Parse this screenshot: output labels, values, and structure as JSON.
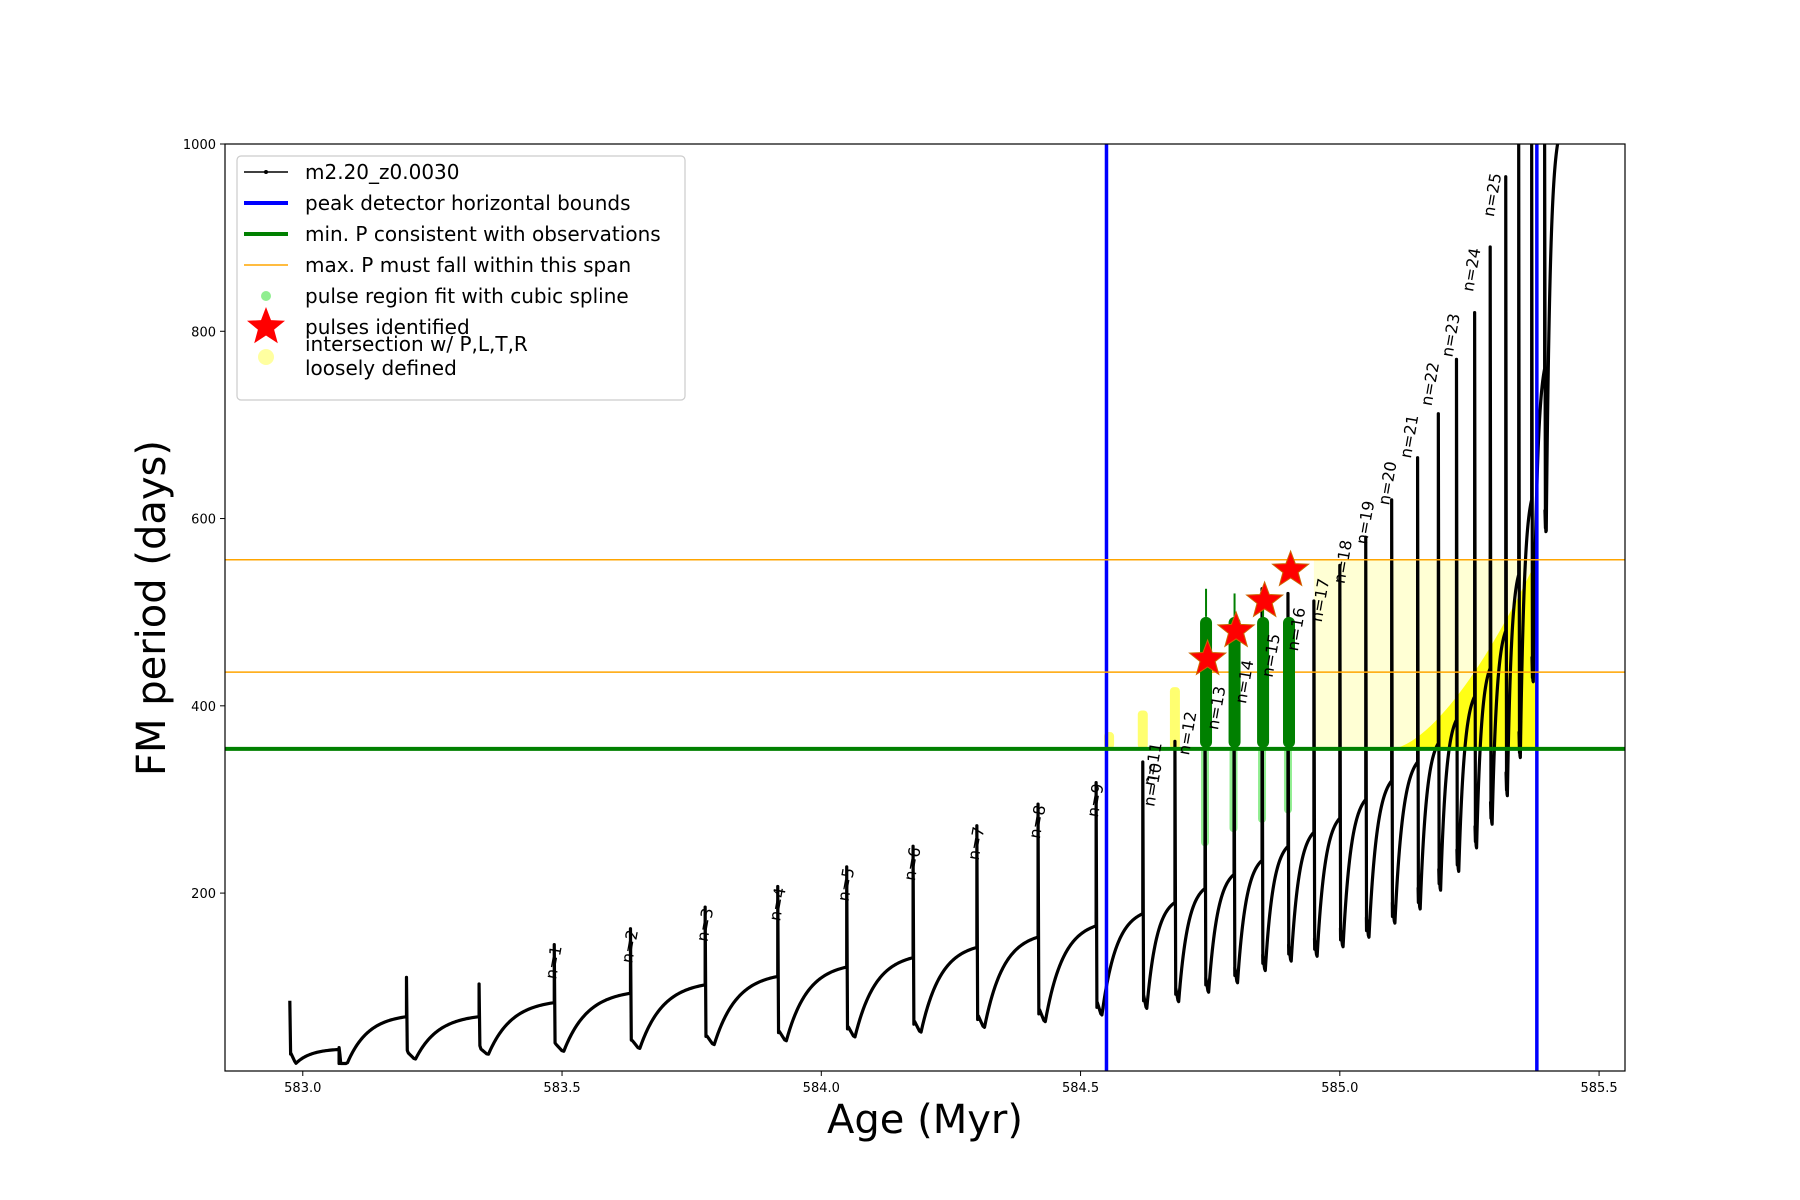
{
  "chart_data": {
    "type": "line",
    "xlabel": "Age (Myr)",
    "ylabel": "FM period (days)",
    "xlim": [
      582.85,
      585.55
    ],
    "ylim": [
      10,
      1000
    ],
    "x_ticks": [
      "583.0",
      "583.5",
      "584.0",
      "584.5",
      "585.0",
      "585.5"
    ],
    "x_tick_values": [
      583.0,
      583.5,
      584.0,
      584.5,
      585.0,
      585.5
    ],
    "y_ticks": [
      "200",
      "400",
      "600",
      "800",
      "1000"
    ],
    "y_tick_values": [
      200,
      400,
      600,
      800,
      1000
    ],
    "grid": false,
    "legend_position": "upper-left",
    "legend": [
      {
        "label": "m2.20_z0.0030",
        "marker": "line-dot",
        "color": "#000000"
      },
      {
        "label": "peak detector horizontal bounds",
        "marker": "line",
        "color": "#0000ff"
      },
      {
        "label": "min. P consistent with observations",
        "marker": "line",
        "color": "#008000"
      },
      {
        "label": "max. P must fall within this span",
        "marker": "line",
        "color": "#ffa500"
      },
      {
        "label": "pulse region fit with cubic spline",
        "marker": "dot",
        "color": "#90ee90"
      },
      {
        "label": "pulses identified",
        "marker": "star",
        "color": "#ff0000"
      },
      {
        "label": "intersection w/ P,L,T,R",
        "label2": "loosely defined",
        "marker": "dot",
        "color": "#ffffa0"
      }
    ],
    "peak_detector_bounds_x": [
      584.55,
      585.38
    ],
    "min_period": 354,
    "max_period_span": [
      436,
      556
    ],
    "series": [
      {
        "name": "m2.20_z0.0030",
        "color": "#000000",
        "cycles": [
          {
            "t_start": 582.975,
            "t_end": 583.07,
            "p_start": 85,
            "p_trough": 18,
            "p_end": 33,
            "p_peak": 85
          },
          {
            "t_start": 583.07,
            "t_end": 583.2,
            "p_start": 18,
            "p_trough": 18,
            "p_end": 68,
            "p_peak": 35
          },
          {
            "t_start": 583.2,
            "t_end": 583.34,
            "p_start": 68,
            "p_trough": 22,
            "p_end": 68,
            "p_peak": 110
          },
          {
            "t_start": 583.34,
            "t_end": 583.485,
            "p_start": 68,
            "p_trough": 27,
            "p_end": 83,
            "p_peak": 103
          },
          {
            "t_start": 583.485,
            "t_end": 583.632,
            "p_start": 83,
            "p_trough": 30,
            "p_end": 93,
            "p_peak": 145
          },
          {
            "t_start": 583.632,
            "t_end": 583.776,
            "p_start": 93,
            "p_trough": 33,
            "p_end": 102,
            "p_peak": 162
          },
          {
            "t_start": 583.776,
            "t_end": 583.916,
            "p_start": 102,
            "p_trough": 37,
            "p_end": 111,
            "p_peak": 185
          },
          {
            "t_start": 583.916,
            "t_end": 584.049,
            "p_start": 111,
            "p_trough": 41,
            "p_end": 121,
            "p_peak": 207
          },
          {
            "t_start": 584.049,
            "t_end": 584.177,
            "p_start": 121,
            "p_trough": 45,
            "p_end": 131,
            "p_peak": 228
          },
          {
            "t_start": 584.177,
            "t_end": 584.3,
            "p_start": 131,
            "p_trough": 50,
            "p_end": 142,
            "p_peak": 250
          },
          {
            "t_start": 584.3,
            "t_end": 584.418,
            "p_start": 142,
            "p_trough": 55,
            "p_end": 153,
            "p_peak": 272
          },
          {
            "t_start": 584.418,
            "t_end": 584.53,
            "p_start": 153,
            "p_trough": 61,
            "p_end": 165,
            "p_peak": 295
          },
          {
            "t_start": 584.53,
            "t_end": 584.62,
            "p_start": 165,
            "p_trough": 68,
            "p_end": 178,
            "p_peak": 318
          },
          {
            "t_start": 584.62,
            "t_end": 584.682,
            "p_start": 178,
            "p_trough": 75,
            "p_end": 190,
            "p_peak": 340
          },
          {
            "t_start": 584.682,
            "t_end": 584.74,
            "p_start": 190,
            "p_trough": 82,
            "p_end": 205,
            "p_peak": 362
          },
          {
            "t_start": 584.74,
            "t_end": 584.796,
            "p_start": 205,
            "p_trough": 92,
            "p_end": 220,
            "p_peak": 395
          },
          {
            "t_start": 584.796,
            "t_end": 584.85,
            "p_start": 220,
            "p_trough": 102,
            "p_end": 235,
            "p_peak": 422
          },
          {
            "t_start": 584.85,
            "t_end": 584.9,
            "p_start": 235,
            "p_trough": 115,
            "p_end": 250,
            "p_peak": 525
          },
          {
            "t_start": 584.9,
            "t_end": 584.95,
            "p_start": 250,
            "p_trough": 125,
            "p_end": 265,
            "p_peak": 520
          },
          {
            "t_start": 584.95,
            "t_end": 585.0,
            "p_start": 265,
            "p_trough": 130,
            "p_end": 280,
            "p_peak": 512
          },
          {
            "t_start": 585.0,
            "t_end": 585.05,
            "p_start": 280,
            "p_trough": 140,
            "p_end": 300,
            "p_peak": 550
          },
          {
            "t_start": 585.05,
            "t_end": 585.1,
            "p_start": 300,
            "p_trough": 150,
            "p_end": 320,
            "p_peak": 580
          },
          {
            "t_start": 585.1,
            "t_end": 585.15,
            "p_start": 320,
            "p_trough": 165,
            "p_end": 340,
            "p_peak": 620
          },
          {
            "t_start": 585.15,
            "t_end": 585.19,
            "p_start": 340,
            "p_trough": 180,
            "p_end": 360,
            "p_peak": 665
          },
          {
            "t_start": 585.19,
            "t_end": 585.225,
            "p_start": 360,
            "p_trough": 200,
            "p_end": 385,
            "p_peak": 712
          },
          {
            "t_start": 585.225,
            "t_end": 585.26,
            "p_start": 385,
            "p_trough": 220,
            "p_end": 410,
            "p_peak": 770
          },
          {
            "t_start": 585.26,
            "t_end": 585.29,
            "p_start": 410,
            "p_trough": 245,
            "p_end": 440,
            "p_peak": 820
          },
          {
            "t_start": 585.29,
            "t_end": 585.32,
            "p_start": 440,
            "p_trough": 270,
            "p_end": 480,
            "p_peak": 890
          },
          {
            "t_start": 585.32,
            "t_end": 585.345,
            "p_start": 480,
            "p_trough": 300,
            "p_end": 540,
            "p_peak": 965
          },
          {
            "t_start": 585.345,
            "t_end": 585.37,
            "p_start": 540,
            "p_trough": 340,
            "p_end": 620,
            "p_peak": 1000
          },
          {
            "t_start": 585.37,
            "t_end": 585.395,
            "p_start": 620,
            "p_trough": 420,
            "p_end": 760,
            "p_peak": 1000
          },
          {
            "t_start": 585.395,
            "t_end": 585.42,
            "p_start": 760,
            "p_trough": 580,
            "p_end": 1000,
            "p_peak": 1000
          }
        ]
      }
    ],
    "pulse_labels": [
      {
        "text": "n=1",
        "x": 583.488,
        "p": 145
      },
      {
        "text": "n=2",
        "x": 583.635,
        "p": 162
      },
      {
        "text": "n=3",
        "x": 583.78,
        "p": 185
      },
      {
        "text": "n=4",
        "x": 583.92,
        "p": 207
      },
      {
        "text": "n=5",
        "x": 584.052,
        "p": 228
      },
      {
        "text": "n=6",
        "x": 584.18,
        "p": 250
      },
      {
        "text": "n=7",
        "x": 584.303,
        "p": 272
      },
      {
        "text": "n=8",
        "x": 584.421,
        "p": 295
      },
      {
        "text": "n=9",
        "x": 584.533,
        "p": 318
      },
      {
        "text": "n=10",
        "x": 584.645,
        "p": 340
      },
      {
        "text": "n=11",
        "x": 584.645,
        "p": 362
      },
      {
        "text": "n=12",
        "x": 584.712,
        "p": 395
      },
      {
        "text": "n=13",
        "x": 584.768,
        "p": 422
      },
      {
        "text": "n=14",
        "x": 584.822,
        "p": 450
      },
      {
        "text": "n=15",
        "x": 584.873,
        "p": 478
      },
      {
        "text": "n=16",
        "x": 584.922,
        "p": 506
      },
      {
        "text": "n=17",
        "x": 584.968,
        "p": 537
      },
      {
        "text": "n=18",
        "x": 585.012,
        "p": 578
      },
      {
        "text": "n=19",
        "x": 585.055,
        "p": 620
      },
      {
        "text": "n=20",
        "x": 585.098,
        "p": 662
      },
      {
        "text": "n=21",
        "x": 585.14,
        "p": 712
      },
      {
        "text": "n=22",
        "x": 585.18,
        "p": 768
      },
      {
        "text": "n=23",
        "x": 585.22,
        "p": 820
      },
      {
        "text": "n=24",
        "x": 585.26,
        "p": 890
      },
      {
        "text": "n=25",
        "x": 585.3,
        "p": 970
      }
    ],
    "pulses_identified": [
      {
        "x": 584.745,
        "p": 450
      },
      {
        "x": 584.8,
        "p": 480
      },
      {
        "x": 584.855,
        "p": 512
      },
      {
        "x": 584.905,
        "p": 545
      }
    ],
    "spline_fit_regions": [
      {
        "x": 584.74,
        "p_low": 250,
        "p_high": 355
      },
      {
        "x": 584.795,
        "p_low": 265,
        "p_high": 355
      },
      {
        "x": 584.85,
        "p_low": 275,
        "p_high": 355
      },
      {
        "x": 584.9,
        "p_low": 285,
        "p_high": 355
      }
    ],
    "green_pulse_columns": [
      {
        "x": 584.742,
        "p_low": 355,
        "p_high": 495,
        "p_tip": 525
      },
      {
        "x": 584.797,
        "p_low": 355,
        "p_high": 495,
        "p_tip": 520
      },
      {
        "x": 584.852,
        "p_low": 355,
        "p_high": 495,
        "p_tip": 512
      },
      {
        "x": 584.902,
        "p_low": 355,
        "p_high": 495,
        "p_tip": 495
      }
    ],
    "yellow_region": {
      "x_start": 584.95,
      "x_end": 585.38,
      "p_low": 354,
      "p_high": 556
    }
  }
}
